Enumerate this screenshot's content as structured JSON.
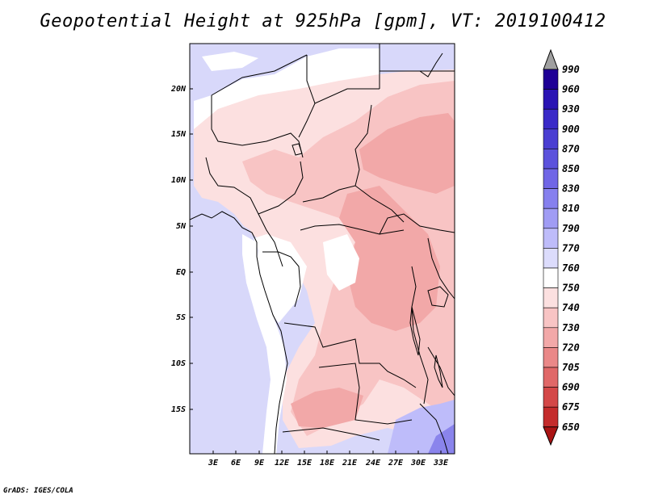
{
  "title": "Geopotential Height at 925hPa [gpm], VT: 2019100412",
  "credit": "GrADS: IGES/COLA",
  "map": {
    "lat_labels": [
      "20N",
      "15N",
      "10N",
      "5N",
      "EQ",
      "5S",
      "10S",
      "15S"
    ],
    "lon_labels": [
      "3E",
      "6E",
      "9E",
      "12E",
      "15E",
      "18E",
      "21E",
      "24E",
      "27E",
      "30E",
      "33E"
    ],
    "land_color": "#ffffff",
    "border_color": "#000000"
  },
  "colorbar": {
    "levels": [
      "990",
      "960",
      "930",
      "900",
      "870",
      "850",
      "830",
      "810",
      "790",
      "770",
      "760",
      "750",
      "740",
      "730",
      "720",
      "705",
      "690",
      "675",
      "650"
    ],
    "top_arrow_color": "#a0a0a0",
    "colors": [
      "#1e0096",
      "#2a14b4",
      "#3a2ac8",
      "#4a3ed2",
      "#5c52dc",
      "#7066e6",
      "#8680ee",
      "#a09cf4",
      "#bebcfa",
      "#dcdcfc",
      "#ffffff",
      "#fce0e0",
      "#f8c4c4",
      "#f2a8a8",
      "#ea8888",
      "#e06868",
      "#d44848",
      "#c42c2c",
      "#aa1414"
    ]
  }
}
